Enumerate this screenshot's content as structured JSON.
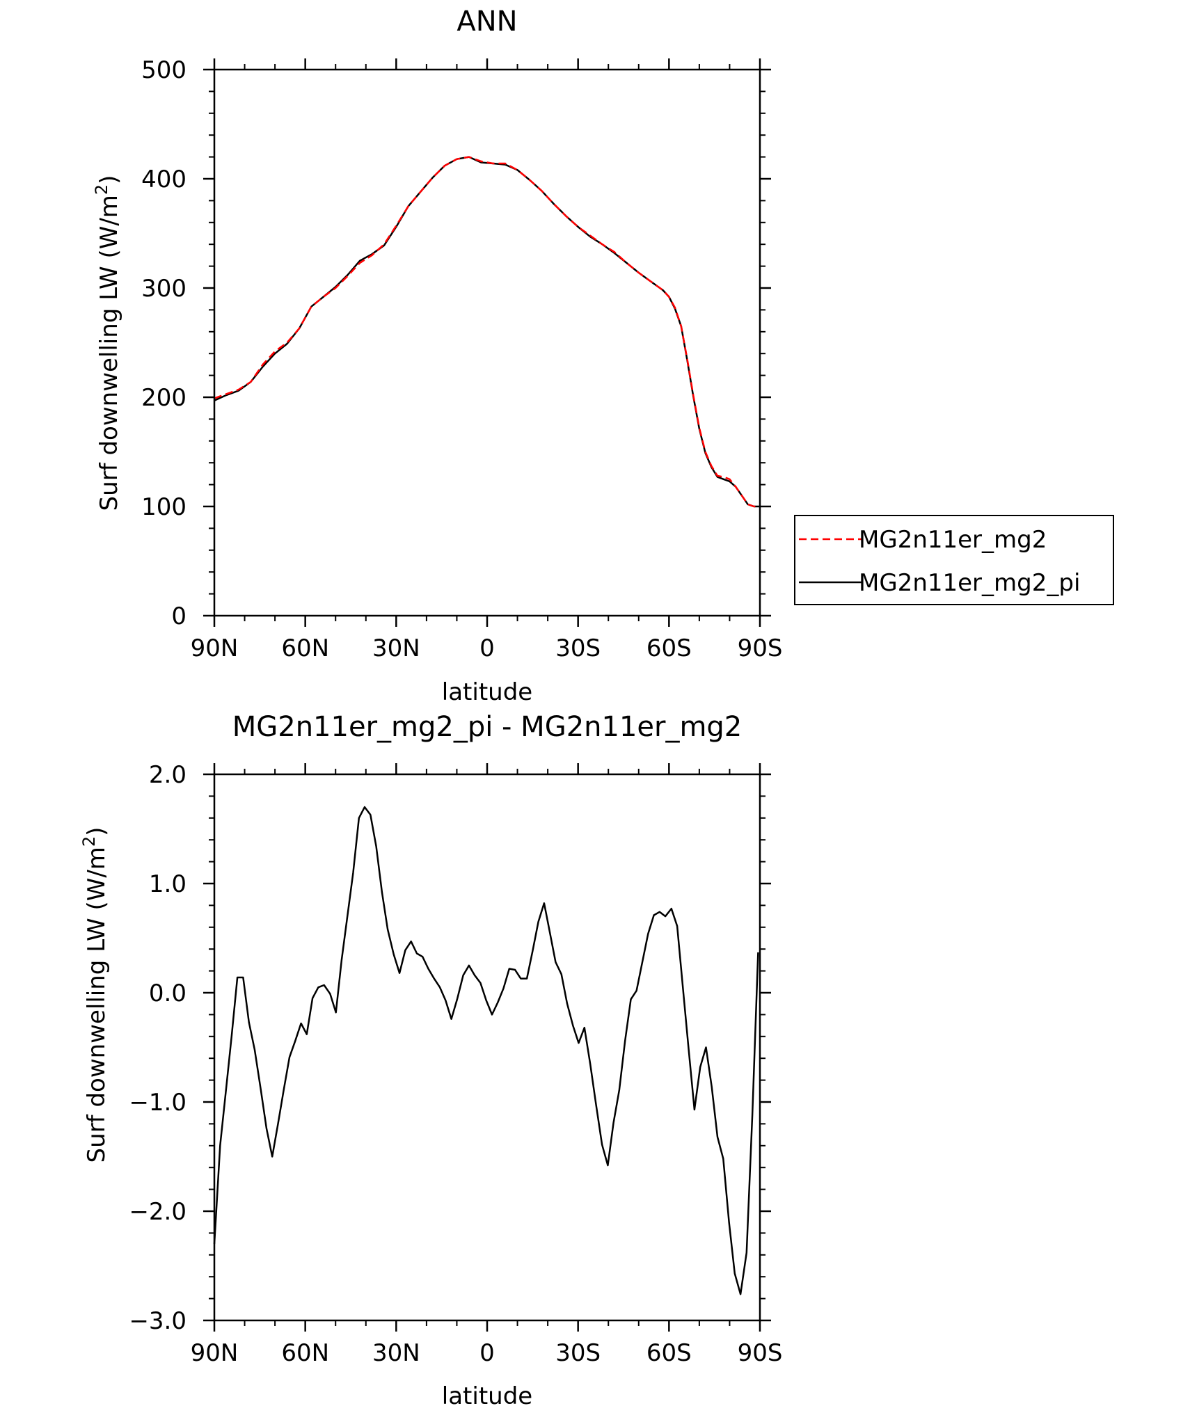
{
  "chart_data": [
    {
      "type": "line",
      "title": "ANN",
      "xlabel": "latitude",
      "ylabel": "Surf downwelling LW (W/m",
      "ylabel_sup": "2",
      "ylabel_tail": ")",
      "xlim": [
        90,
        -90
      ],
      "ylim": [
        0,
        500
      ],
      "xticks": [
        90,
        60,
        30,
        0,
        -30,
        -60,
        -90
      ],
      "xticklabels": [
        "90N",
        "60N",
        "30N",
        "0",
        "30S",
        "60S",
        "90S"
      ],
      "yticks": [
        0,
        100,
        200,
        300,
        400,
        500
      ],
      "yticklabels": [
        "0",
        "100",
        "200",
        "300",
        "400",
        "500"
      ],
      "legend_position": "right",
      "series": [
        {
          "name": "MG2n11er_mg2",
          "color": "#ff0000",
          "dash": "dashed",
          "x": [
            90,
            86,
            82,
            78,
            74,
            70,
            66,
            62,
            58,
            54,
            50,
            46,
            42,
            38,
            34,
            30,
            26,
            22,
            18,
            14,
            10,
            6,
            2,
            -2,
            -6,
            -10,
            -14,
            -18,
            -22,
            -26,
            -30,
            -34,
            -38,
            -42,
            -46,
            -50,
            -54,
            -58,
            -60,
            -62,
            -64,
            -66,
            -68,
            -70,
            -72,
            -74,
            -76,
            -78,
            -80,
            -82,
            -84,
            -86,
            -88,
            -90
          ],
          "y": [
            199,
            203,
            207,
            214,
            230,
            242,
            250,
            263,
            283,
            292,
            300,
            311,
            323,
            330,
            340,
            357,
            375,
            388,
            401,
            412,
            418,
            420,
            416,
            414,
            414,
            408,
            399,
            389,
            377,
            366,
            356,
            348,
            340,
            333,
            323,
            314,
            306,
            298,
            292,
            282,
            265,
            235,
            202,
            172,
            150,
            137,
            128,
            127,
            125,
            118,
            110,
            102,
            100,
            100
          ]
        },
        {
          "name": "MG2n11er_mg2_pi",
          "color": "#000000",
          "dash": "solid",
          "x": [
            90,
            86,
            82,
            78,
            74,
            70,
            66,
            62,
            58,
            54,
            50,
            46,
            42,
            38,
            34,
            30,
            26,
            22,
            18,
            14,
            10,
            6,
            2,
            -2,
            -6,
            -10,
            -14,
            -18,
            -22,
            -26,
            -30,
            -34,
            -38,
            -42,
            -46,
            -50,
            -54,
            -58,
            -60,
            -62,
            -64,
            -66,
            -68,
            -70,
            -72,
            -74,
            -76,
            -78,
            -80,
            -82,
            -84,
            -86,
            -88,
            -90
          ],
          "y": [
            197,
            202,
            206,
            214,
            228,
            240,
            249,
            263,
            283,
            292,
            301,
            312,
            325,
            331,
            339,
            356,
            375,
            388,
            401,
            412,
            418,
            420,
            415,
            414,
            413,
            408,
            399,
            389,
            377,
            366,
            356,
            347,
            340,
            332,
            323,
            314,
            306,
            298,
            292,
            281,
            265,
            234,
            201,
            171,
            149,
            136,
            127,
            125,
            123,
            118,
            110,
            102,
            100,
            100
          ]
        }
      ]
    },
    {
      "type": "line",
      "title": "MG2n11er_mg2_pi - MG2n11er_mg2",
      "xlabel": "latitude",
      "ylabel": "Surf downwelling LW (W/m",
      "ylabel_sup": "2",
      "ylabel_tail": ")",
      "xlim": [
        90,
        -90
      ],
      "ylim": [
        -3.0,
        2.0
      ],
      "xticks": [
        90,
        60,
        30,
        0,
        -30,
        -60,
        -90
      ],
      "xticklabels": [
        "90N",
        "60N",
        "30N",
        "0",
        "30S",
        "60S",
        "90S"
      ],
      "yticks": [
        -3.0,
        -2.0,
        -1.0,
        0.0,
        1.0,
        2.0
      ],
      "yticklabels": [
        "−3.0",
        "−2.0",
        "−1.0",
        "0.0",
        "1.0",
        "2.0"
      ],
      "series": [
        {
          "color": "#000000",
          "dash": "solid",
          "x": [
            90,
            88.1,
            86.2,
            84.3,
            82.4,
            80.5,
            78.6,
            76.7,
            74.7,
            72.8,
            70.9,
            69.0,
            67.1,
            65.2,
            63.3,
            61.4,
            59.5,
            57.6,
            55.7,
            53.8,
            51.8,
            49.9,
            48.0,
            46.1,
            44.2,
            42.3,
            40.4,
            38.5,
            36.6,
            34.7,
            32.8,
            30.8,
            28.9,
            27.0,
            25.1,
            23.2,
            21.3,
            19.4,
            17.5,
            15.6,
            13.7,
            11.8,
            9.9,
            7.9,
            6.0,
            4.1,
            2.2,
            0.3,
            -1.6,
            -3.5,
            -5.4,
            -7.3,
            -9.2,
            -11.1,
            -13.1,
            -15.0,
            -16.9,
            -18.8,
            -20.7,
            -22.6,
            -24.5,
            -26.4,
            -28.3,
            -30.2,
            -32.1,
            -34.0,
            -35.9,
            -37.9,
            -39.8,
            -41.7,
            -43.6,
            -45.5,
            -47.4,
            -49.3,
            -51.2,
            -53.1,
            -55.0,
            -56.9,
            -58.8,
            -60.8,
            -62.7,
            -64.6,
            -66.5,
            -68.4,
            -70.3,
            -72.2,
            -74.1,
            -76.0,
            -77.9,
            -79.8,
            -81.7,
            -83.6,
            -85.6,
            -87.5,
            -89.4
          ],
          "y": [
            -2.3,
            -1.4,
            -0.9,
            -0.4,
            0.14,
            0.14,
            -0.27,
            -0.52,
            -0.88,
            -1.24,
            -1.5,
            -1.2,
            -0.89,
            -0.59,
            -0.44,
            -0.28,
            -0.38,
            -0.05,
            0.05,
            0.07,
            -0.01,
            -0.18,
            0.3,
            0.7,
            1.1,
            1.6,
            1.7,
            1.63,
            1.34,
            0.92,
            0.58,
            0.35,
            0.18,
            0.39,
            0.47,
            0.36,
            0.33,
            0.22,
            0.13,
            0.05,
            -0.07,
            -0.24,
            -0.06,
            0.16,
            0.25,
            0.16,
            0.09,
            -0.07,
            -0.2,
            -0.09,
            0.04,
            0.22,
            0.21,
            0.13,
            0.13,
            0.38,
            0.65,
            0.82,
            0.55,
            0.28,
            0.17,
            -0.1,
            -0.3,
            -0.46,
            -0.32,
            -0.65,
            -1.02,
            -1.39,
            -1.58,
            -1.19,
            -0.89,
            -0.44,
            -0.06,
            0.02,
            0.28,
            0.54,
            0.71,
            0.74,
            0.7,
            0.77,
            0.61,
            0.04,
            -0.52,
            -1.07,
            -0.68,
            -0.5,
            -0.86,
            -1.32,
            -1.52,
            -2.1,
            -2.57,
            -2.76,
            -2.38,
            -1.12,
            0.37
          ]
        }
      ]
    }
  ]
}
